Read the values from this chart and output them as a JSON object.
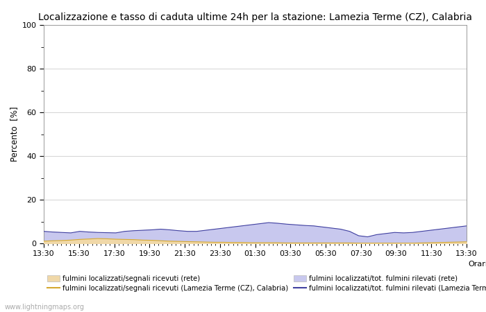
{
  "title": "Localizzazione e tasso di caduta ultime 24h per la stazione: Lamezia Terme (CZ), Calabria",
  "ylabel": "Percento  [%]",
  "xlabel_right": "Orario",
  "watermark": "www.lightningmaps.org",
  "xlim": [
    0,
    48
  ],
  "ylim": [
    0,
    100
  ],
  "yticks": [
    0,
    20,
    40,
    60,
    80,
    100
  ],
  "yticks_minor": [
    10,
    30,
    50,
    70,
    90
  ],
  "xtick_labels": [
    "13:30",
    "15:30",
    "17:30",
    "19:30",
    "21:30",
    "23:30",
    "01:30",
    "03:30",
    "05:30",
    "07:30",
    "09:30",
    "11:30",
    "13:30"
  ],
  "fill_color_rete": "#f0d8a8",
  "fill_color_lamezia": "#c8c8ee",
  "line_color_rete": "#d4a830",
  "line_color_lamezia": "#4040a0",
  "background_color": "#ffffff",
  "title_fontsize": 10,
  "legend_entries": [
    "fulmini localizzati/segnali ricevuti (rete)",
    "fulmini localizzati/segnali ricevuti (Lamezia Terme (CZ), Calabria)",
    "fulmini localizzati/tot. fulmini rilevati (rete)",
    "fulmini localizzati/tot. fulmini rilevati (Lamezia Terme (CZ), Calabria)"
  ],
  "rete_fill": [
    1.0,
    1.2,
    1.3,
    1.5,
    1.8,
    2.0,
    2.2,
    2.1,
    1.9,
    1.8,
    1.7,
    1.5,
    1.4,
    1.2,
    1.0,
    0.9,
    0.8,
    0.7,
    0.6,
    0.5,
    0.5,
    0.4,
    0.4,
    0.3,
    0.3,
    0.3,
    0.3,
    0.2,
    0.2,
    0.2,
    0.2,
    0.2,
    0.2,
    0.2,
    0.2,
    0.1,
    0.1,
    0.1,
    0.1,
    0.1,
    0.1,
    0.1,
    0.2,
    0.3,
    0.4,
    0.5,
    0.6,
    0.7
  ],
  "lamezia_fill": [
    5.5,
    5.2,
    5.0,
    4.8,
    5.5,
    5.2,
    5.0,
    4.9,
    4.8,
    5.5,
    5.8,
    6.0,
    6.2,
    6.5,
    6.2,
    5.8,
    5.5,
    5.5,
    6.0,
    6.5,
    7.0,
    7.5,
    8.0,
    8.5,
    9.0,
    9.5,
    9.2,
    8.8,
    8.5,
    8.2,
    8.0,
    7.5,
    7.0,
    6.5,
    5.5,
    3.5,
    3.0,
    4.0,
    4.5,
    5.0,
    4.8,
    5.0,
    5.5,
    6.0,
    6.5,
    7.0,
    7.5,
    8.0
  ]
}
